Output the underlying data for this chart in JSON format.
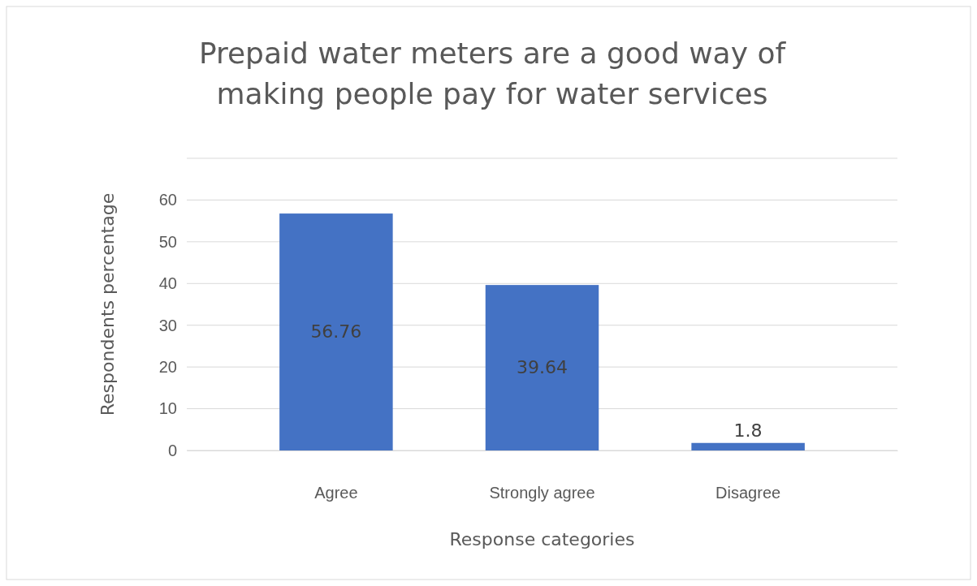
{
  "chart_data": {
    "type": "bar",
    "title": "Prepaid water meters are a good way of making people pay for water services",
    "xlabel": "Response categories",
    "ylabel": "Respondents percentage",
    "categories": [
      "Agree",
      "Strongly agree",
      "Disagree"
    ],
    "values": [
      56.76,
      39.64,
      1.8
    ],
    "color": "#4472c4",
    "ylim": [
      0,
      70
    ],
    "yticks": [
      0,
      10,
      20,
      30,
      40,
      50,
      60,
      {
        "value": 70,
        "label": null
      }
    ],
    "grid": "y",
    "data_labels": true
  }
}
